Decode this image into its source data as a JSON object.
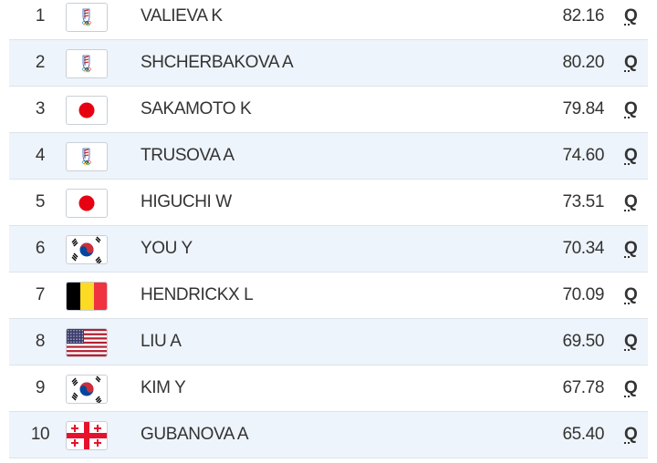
{
  "table": {
    "rows": [
      [
        "1",
        "VALIEVA K",
        "82.16",
        "Q"
      ],
      [
        "2",
        "SHCHERBAKOVA A",
        "80.20",
        "Q"
      ],
      [
        "3",
        "SAKAMOTO K",
        "79.84",
        "Q"
      ],
      [
        "4",
        "TRUSOVA A",
        "74.60",
        "Q"
      ],
      [
        "5",
        "HIGUCHI W",
        "73.51",
        "Q"
      ],
      [
        "6",
        "YOU Y",
        "70.34",
        "Q"
      ],
      [
        "7",
        "HENDRICKX L",
        "70.09",
        "Q"
      ],
      [
        "8",
        "LIU A",
        "69.50",
        "Q"
      ],
      [
        "9",
        "KIM Y",
        "67.78",
        "Q"
      ],
      [
        "10",
        "GUBANOVA A",
        "65.40",
        "Q"
      ]
    ]
  }
}
